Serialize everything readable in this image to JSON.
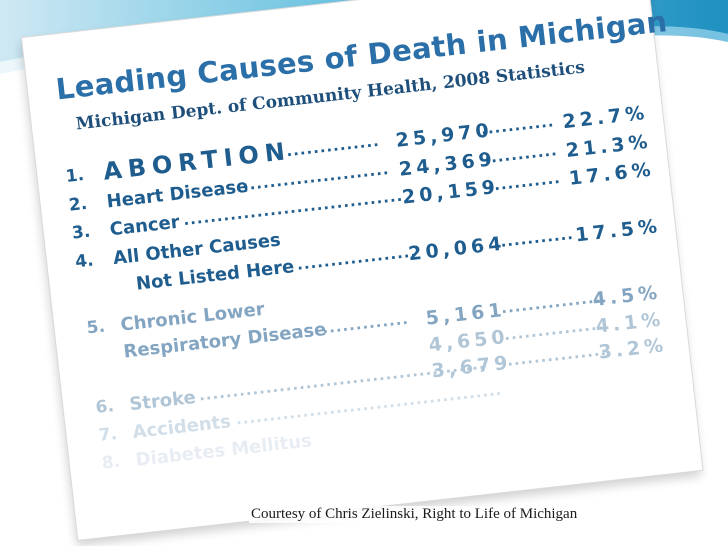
{
  "banner": {
    "colors": [
      "#cfe8f3",
      "#6ec4e1",
      "#1f90c0"
    ]
  },
  "document": {
    "title": "Leading Causes of Death in Michigan",
    "subtitle": "Michigan Dept. of Community Health, 2008 Statistics",
    "rows": [
      {
        "rank": "1.",
        "label": "ABORTION",
        "dots": "..............",
        "count": "25,970",
        "dots2": "...........",
        "percent": "22.7%"
      },
      {
        "rank": "2.",
        "label": "Heart Disease",
        "dots": "......................",
        "count": "24,369",
        "dots2": "...........",
        "percent": "21.3%"
      },
      {
        "rank": "3.",
        "label": "Cancer",
        "dots": ".................................",
        "count": "20,159",
        "dots2": "...........",
        "percent": "17.6%"
      },
      {
        "rank": "4.",
        "label": "All Other Causes",
        "label2": "Not Listed Here",
        "dots": "..................",
        "count": "20,064",
        "dots2": "............",
        "percent": "17.5%"
      },
      {
        "rank": "5.",
        "label": "Chronic Lower",
        "label2": "Respiratory Disease",
        "dots": ".............",
        "count": "5,161",
        "dots2": "...............",
        "percent": "4.5%"
      },
      {
        "rank": "",
        "label": "",
        "dots": "",
        "count": "4,650",
        "dots2": "...............",
        "percent": "4.1%"
      },
      {
        "rank": "6.",
        "label": "Stroke",
        "dots": "...........................................",
        "count": "3,679",
        "dots2": "...............",
        "percent": "3.2%"
      },
      {
        "rank": "7.",
        "label": "Accidents",
        "dots": "........................................",
        "count": "",
        "dots2": "",
        "percent": ""
      },
      {
        "rank": "8.",
        "label": "Diabetes Mellitus",
        "dots": "",
        "count": "",
        "dots2": "",
        "percent": ""
      }
    ]
  },
  "caption": "Courtesy of Chris Zielinski, Right to Life of Michigan"
}
